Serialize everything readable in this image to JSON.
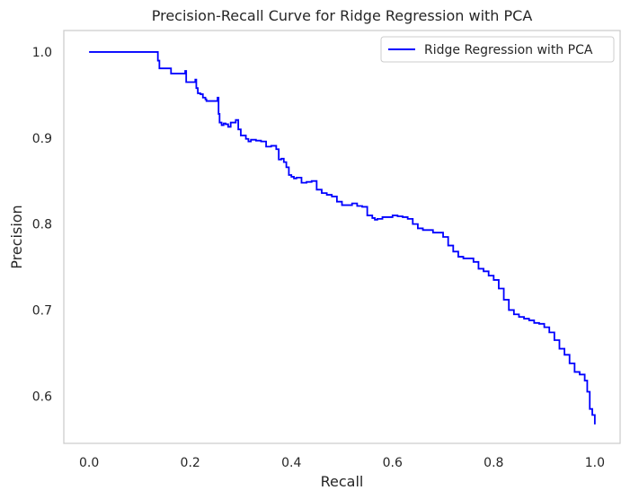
{
  "chart_data": {
    "type": "line",
    "title": "Precision-Recall Curve for Ridge Regression with PCA",
    "xlabel": "Recall",
    "ylabel": "Precision",
    "xlim": [
      -0.05,
      1.05
    ],
    "ylim": [
      0.545,
      1.025
    ],
    "xticks": [
      "0.0",
      "0.2",
      "0.4",
      "0.6",
      "0.8",
      "1.0"
    ],
    "yticks": [
      "0.6",
      "0.7",
      "0.8",
      "0.9",
      "1.0"
    ],
    "grid": false,
    "legend_position": "top-right",
    "series": [
      {
        "name": "Ridge Regression with PCA",
        "color": "#0000ff",
        "x": [
          0.0,
          0.135,
          0.136,
          0.138,
          0.139,
          0.16,
          0.162,
          0.19,
          0.192,
          0.21,
          0.212,
          0.215,
          0.22,
          0.225,
          0.23,
          0.232,
          0.254,
          0.256,
          0.258,
          0.262,
          0.266,
          0.27,
          0.275,
          0.28,
          0.29,
          0.295,
          0.3,
          0.305,
          0.31,
          0.315,
          0.32,
          0.33,
          0.34,
          0.35,
          0.36,
          0.37,
          0.375,
          0.38,
          0.385,
          0.39,
          0.395,
          0.4,
          0.405,
          0.41,
          0.42,
          0.43,
          0.44,
          0.45,
          0.46,
          0.47,
          0.48,
          0.49,
          0.5,
          0.51,
          0.52,
          0.53,
          0.54,
          0.55,
          0.56,
          0.565,
          0.57,
          0.58,
          0.59,
          0.6,
          0.61,
          0.62,
          0.63,
          0.64,
          0.65,
          0.66,
          0.67,
          0.68,
          0.69,
          0.7,
          0.71,
          0.72,
          0.73,
          0.74,
          0.75,
          0.76,
          0.77,
          0.78,
          0.79,
          0.8,
          0.81,
          0.82,
          0.83,
          0.84,
          0.85,
          0.86,
          0.87,
          0.88,
          0.89,
          0.9,
          0.91,
          0.92,
          0.93,
          0.94,
          0.95,
          0.96,
          0.97,
          0.98,
          0.985,
          0.99,
          0.995,
          1.0
        ],
        "y": [
          1.0,
          1.0,
          0.99,
          0.99,
          0.981,
          0.981,
          0.975,
          0.978,
          0.965,
          0.968,
          0.958,
          0.952,
          0.951,
          0.947,
          0.945,
          0.943,
          0.947,
          0.928,
          0.918,
          0.915,
          0.917,
          0.916,
          0.913,
          0.918,
          0.921,
          0.91,
          0.903,
          0.903,
          0.899,
          0.896,
          0.898,
          0.897,
          0.896,
          0.89,
          0.891,
          0.887,
          0.875,
          0.876,
          0.872,
          0.866,
          0.857,
          0.855,
          0.853,
          0.854,
          0.848,
          0.849,
          0.85,
          0.84,
          0.836,
          0.834,
          0.832,
          0.826,
          0.822,
          0.822,
          0.824,
          0.821,
          0.82,
          0.81,
          0.807,
          0.805,
          0.806,
          0.808,
          0.808,
          0.81,
          0.809,
          0.808,
          0.806,
          0.8,
          0.795,
          0.793,
          0.793,
          0.79,
          0.79,
          0.785,
          0.775,
          0.768,
          0.762,
          0.76,
          0.76,
          0.756,
          0.748,
          0.745,
          0.74,
          0.735,
          0.725,
          0.712,
          0.7,
          0.695,
          0.692,
          0.69,
          0.688,
          0.685,
          0.684,
          0.68,
          0.674,
          0.665,
          0.655,
          0.648,
          0.638,
          0.628,
          0.625,
          0.618,
          0.605,
          0.585,
          0.578,
          0.567
        ]
      }
    ]
  }
}
